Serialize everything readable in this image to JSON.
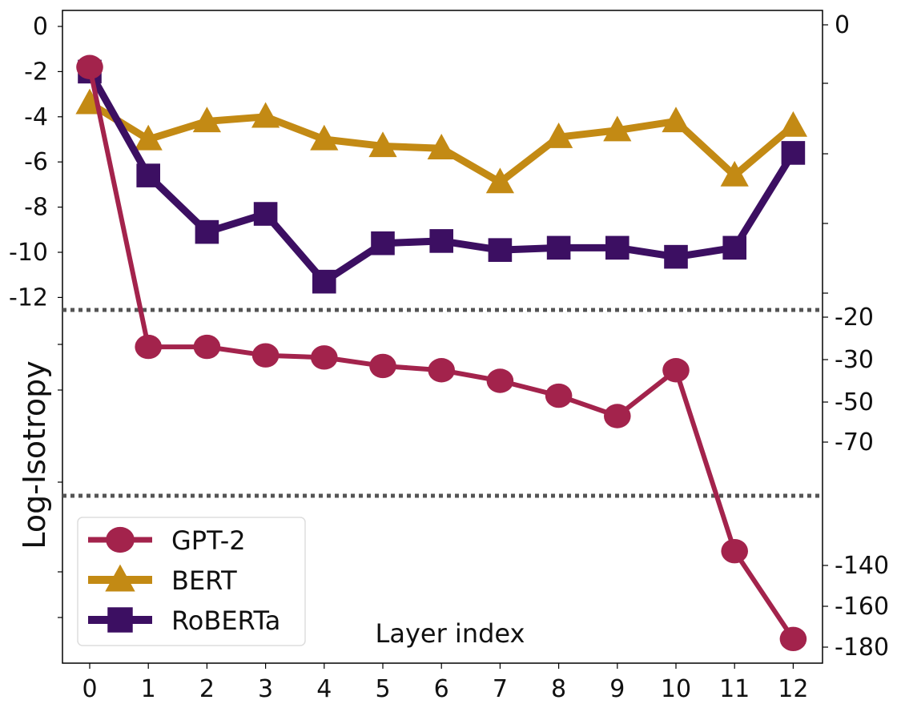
{
  "chart_data": {
    "type": "line",
    "xlabel": "Layer index",
    "ylabel": "Log-Isotropy",
    "x": [
      0,
      1,
      2,
      3,
      4,
      5,
      6,
      7,
      8,
      9,
      10,
      11,
      12
    ],
    "x_tick_labels": [
      "0",
      "1",
      "2",
      "3",
      "4",
      "5",
      "6",
      "7",
      "8",
      "9",
      "10",
      "11",
      "12"
    ],
    "xlim": [
      -0.5,
      12.5
    ],
    "y_scale": "broken axis with three bands separated by dotted lines",
    "left_y_tick_labels": [
      "0",
      "-2",
      "-4",
      "-6",
      "-8",
      "-10",
      "-12"
    ],
    "right_y_tick_labels": [
      "0",
      "-20",
      "-30",
      "-50",
      "-70",
      "-140",
      "-160",
      "-180"
    ],
    "grid": false,
    "legend_position": "lower-left",
    "series": [
      {
        "name": "GPT-2",
        "color": "#a3234c",
        "marker": "circle",
        "values": [
          -1.8,
          -27,
          -27,
          -29,
          -29.5,
          -33,
          -35,
          -40,
          -47,
          -57,
          -35,
          -133,
          -176
        ]
      },
      {
        "name": "BERT",
        "color": "#c38a14",
        "marker": "triangle",
        "values": [
          -3.4,
          -5.0,
          -4.2,
          -4.0,
          -5.0,
          -5.3,
          -5.4,
          -6.9,
          -4.9,
          -4.6,
          -4.2,
          -6.6,
          -4.4
        ]
      },
      {
        "name": "RoBERTa",
        "color": "#3c0f62",
        "marker": "square",
        "values": [
          -2.0,
          -6.6,
          -9.1,
          -8.3,
          -11.3,
          -9.6,
          -9.5,
          -9.9,
          -9.8,
          -9.8,
          -10.2,
          -9.8,
          -5.6
        ]
      }
    ]
  }
}
